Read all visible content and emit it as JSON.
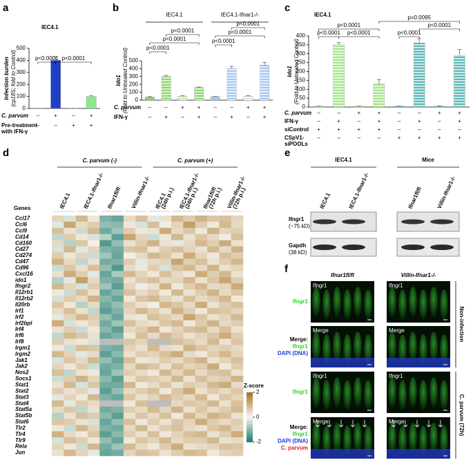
{
  "panel_labels": [
    "a",
    "b",
    "c",
    "d",
    "e",
    "f"
  ],
  "chart_data": [
    {
      "type": "bar",
      "title": "IEC4.1",
      "ylabel": [
        "Infection burden",
        "(cp18S; fold to Control)"
      ],
      "values": [
        1,
        400,
        1,
        100
      ],
      "errors": [
        0,
        30,
        0,
        8
      ],
      "colors": [
        "#1f3fc4",
        "#1f3fc4",
        "#8be88b",
        "#8be88b"
      ],
      "patterns": [
        "solid",
        "solid",
        "solid",
        "solid"
      ],
      "ylim": [
        0,
        500
      ],
      "yticks": [
        0,
        100,
        200,
        300,
        400,
        500
      ],
      "conditions": [
        {
          "label": [
            "C. parvum"
          ],
          "marks": [
            "–",
            "+",
            "–",
            "+"
          ]
        },
        {
          "label": [
            "Pre-treatment",
            "with IFN-γ"
          ],
          "marks": [
            "–",
            "–",
            "+",
            "+"
          ]
        }
      ],
      "annotations": [
        "p<0.0001",
        "p<0.0001"
      ]
    },
    {
      "type": "bar",
      "groups": [
        "IEC4.1",
        "IEC4.1-Ifnar1-/-"
      ],
      "ylabel": [
        "Ido1",
        "(Fold to Untreated Control)"
      ],
      "values": [
        40,
        300,
        50,
        160,
        45,
        400,
        50,
        445
      ],
      "errors": [
        5,
        15,
        6,
        8,
        5,
        30,
        8,
        35
      ],
      "colors": [
        "#8fd66f",
        "#8fd66f",
        "#c8e8b0",
        "#8fd66f",
        "#a7c8f0",
        "#a7c8f0",
        "#dde8f6",
        "#a7c8f0"
      ],
      "patterns": [
        "solid",
        "hatch",
        "hatch",
        "hatch",
        "solid",
        "hatch",
        "hatch",
        "hatch"
      ],
      "ylim": [
        0,
        500
      ],
      "yticks": [
        0,
        100,
        200,
        300,
        400,
        500
      ],
      "conditions": [
        {
          "label": [
            "C. parvum"
          ],
          "marks": [
            "–",
            "–",
            "+",
            "+",
            "–",
            "–",
            "+",
            "+"
          ]
        },
        {
          "label": [
            "IFN-γ"
          ],
          "marks": [
            "–",
            "+",
            "–",
            "+",
            "–",
            "+",
            "–",
            "+"
          ]
        }
      ],
      "annotations": [
        "p<0.0001",
        "p<0.0001",
        "p<0.0001",
        "p<0.0001",
        "p<0.0001",
        "p<0.0001"
      ]
    },
    {
      "type": "bar",
      "title": "IEC4.1",
      "ylabel": [
        "Ido1",
        "(Fold to Untreated Control)"
      ],
      "values": [
        5,
        350,
        5,
        130,
        5,
        360,
        5,
        290
      ],
      "errors": [
        1,
        12,
        1,
        25,
        1,
        25,
        2,
        35
      ],
      "colors": [
        "#a8e890",
        "#a8e890",
        "#a8e890",
        "#a8e890",
        "#5fb8b8",
        "#5fb8b8",
        "#5fb8b8",
        "#5fb8b8"
      ],
      "patterns": [
        "hatch",
        "hatch",
        "hatch",
        "hatch",
        "hatch",
        "hatch",
        "hatch",
        "hatch"
      ],
      "ylim": [
        0,
        400
      ],
      "yticks": [
        0,
        50,
        100,
        150,
        200,
        250,
        300,
        350,
        400
      ],
      "conditions": [
        {
          "label": [
            "C. parvum"
          ],
          "marks": [
            "–",
            "–",
            "+",
            "+",
            "–",
            "–",
            "+",
            "+"
          ]
        },
        {
          "label": [
            "IFN-γ"
          ],
          "marks": [
            "–",
            "+",
            "–",
            "+",
            "–",
            "+",
            "–",
            "+"
          ]
        },
        {
          "label": [
            "siControl"
          ],
          "marks": [
            "+",
            "+",
            "+",
            "+",
            "–",
            "–",
            "–",
            "–"
          ]
        },
        {
          "label": [
            "CSpV1-",
            "siPOOLs"
          ],
          "marks": [
            "–",
            "–",
            "–",
            "–",
            "+",
            "+",
            "+",
            "+"
          ]
        }
      ],
      "annotations": [
        "p=0.0095",
        "p<0.0001",
        "p<0.0001",
        "p<0.0001",
        "p<0.0001",
        "p<0.0001"
      ]
    },
    {
      "type": "heatmap",
      "group_titles": [
        "C. parvum (-)",
        "C. parvum (+)"
      ],
      "column_labels": [
        [
          "IEC4.1"
        ],
        [
          "IEC4.1-Ifnar1-/-"
        ],
        [
          "Ifnar1fl/fl"
        ],
        [
          "Villin-Ifnar1-/-"
        ],
        [
          "IEC4.1",
          "(24h p.i.)"
        ],
        [
          "IEC4.1-Ifnar1-/-",
          "(24h p.i.)"
        ],
        [
          "Ifnar1fl/fl",
          "(72h p.i.)"
        ],
        [
          "Villin-Ifnar1-/-",
          "(72h p.i.)"
        ]
      ],
      "ylabel": "Genes",
      "rows": [
        "Ccl17",
        "Ccl6",
        "Ccl9",
        "Cd14",
        "Cd160",
        "Cd27",
        "Cd274",
        "Cd47",
        "Cd96",
        "Cxcl16",
        "ido1",
        "Ifngr2",
        "Il12rb1",
        "Il12rb2",
        "Il20rb",
        "Irf1",
        "Irf2",
        "Irf2bpl",
        "Irf4",
        "Irf6",
        "Irf8",
        "Irgm1",
        "Irgm2",
        "Jak1",
        "Jak2",
        "Nos2",
        "Socs1",
        "Stat1",
        "Stat2",
        "Stat3",
        "Stat4",
        "Stat5a",
        "Stat5b",
        "Stat6",
        "Tlr2",
        "Tlr4",
        "Tlr9",
        "Rela",
        "Jun"
      ],
      "values": [
        [
          0.5,
          -0.3,
          0.9,
          0.2,
          -1.1,
          -1.3,
          0.4,
          0.8,
          -0.2,
          0.3,
          0.9,
          0.6,
          1.0,
          0.7,
          0.8,
          0.5
        ],
        [
          -0.2,
          1.2,
          0.4,
          0.6,
          -0.9,
          -1.0,
          0.2,
          -0.3,
          0.8,
          -0.1,
          0.5,
          1.3,
          0.6,
          0.2,
          0.9,
          0.4
        ],
        [
          0.8,
          0.3,
          -0.4,
          0.9,
          -1.2,
          -0.8,
          0.6,
          0.2,
          0.3,
          1.1,
          0.4,
          0.7,
          0.2,
          1.0,
          0.5,
          0.6
        ],
        [
          -0.5,
          0.6,
          0.2,
          -0.3,
          -0.6,
          -1.4,
          1.2,
          0.5,
          -0.4,
          0.2,
          0.9,
          0.3,
          0.7,
          0.4,
          0.1,
          0.8
        ],
        [
          0.4,
          -0.6,
          0.7,
          0.1,
          -1.5,
          -0.9,
          0.3,
          0.6,
          1.0,
          0.3,
          -0.2,
          0.4,
          0.9,
          0.6,
          1.1,
          0.3
        ],
        [
          -0.3,
          0.9,
          -0.2,
          0.5,
          -1.1,
          -1.2,
          0.7,
          0.8,
          0.2,
          0.6,
          0.8,
          0.5,
          0.3,
          0.9,
          0.4,
          1.0
        ],
        [
          0.6,
          0.2,
          0.5,
          -0.4,
          -0.8,
          -1.3,
          0.1,
          0.4,
          0.9,
          0.7,
          0.3,
          1.1,
          0.5,
          0.2,
          0.8,
          0.6
        ],
        [
          1.0,
          0.4,
          -0.5,
          0.3,
          -1.2,
          -1.1,
          0.6,
          -0.2,
          0.4,
          0.5,
          1.2,
          0.6,
          0.8,
          0.3,
          0.6,
          0.9
        ],
        [
          -0.4,
          0.7,
          0.3,
          0.8,
          -0.9,
          -1.5,
          0.4,
          0.2,
          0.6,
          -0.3,
          0.7,
          0.9,
          0.4,
          1.0,
          0.3,
          0.5
        ],
        [
          0.3,
          1.1,
          0.6,
          -0.2,
          -1.3,
          -0.7,
          0.9,
          0.5,
          0.2,
          0.8,
          0.4,
          0.2,
          1.1,
          0.6,
          0.9,
          0.3
        ],
        [
          -0.6,
          -0.2,
          1.3,
          0.4,
          -1.1,
          -1.2,
          0.3,
          0.6,
          0.8,
          0.4,
          0.5,
          0.9,
          0.3,
          0.7,
          1.2,
          0.6
        ],
        [
          0.9,
          0.5,
          -0.3,
          0.6,
          -0.8,
          -1.4,
          0.5,
          -0.1,
          0.3,
          1.0,
          0.2,
          0.6,
          0.9,
          0.4,
          0.5,
          1.1
        ],
        [
          0.2,
          -0.4,
          0.8,
          0.3,
          -1.3,
          -1.0,
          0.8,
          0.4,
          0.6,
          0.2,
          0.9,
          0.3,
          0.6,
          1.0,
          0.4,
          0.7
        ],
        [
          -0.3,
          0.6,
          0.4,
          1.0,
          -1.0,
          -1.3,
          0.2,
          0.7,
          0.9,
          0.5,
          0.3,
          0.8,
          0.4,
          0.6,
          0.9,
          0.2
        ],
        [
          0.7,
          0.2,
          -0.6,
          0.4,
          -1.2,
          -0.9,
          0.6,
          0.3,
          0.1,
          0.9,
          0.7,
          0.4,
          1.1,
          0.3,
          0.6,
          0.8
        ],
        [
          0.4,
          0.8,
          0.3,
          -0.5,
          -1.4,
          -1.1,
          0.5,
          0.9,
          0.6,
          0.3,
          1.0,
          0.6,
          0.2,
          0.8,
          0.7,
          0.5
        ],
        [
          -0.2,
          0.5,
          0.9,
          0.6,
          -0.9,
          -1.3,
          0.3,
          0.2,
          0.8,
          0.6,
          0.4,
          1.2,
          0.7,
          0.3,
          0.5,
          0.9
        ],
        [
          1.1,
          -0.3,
          0.2,
          0.5,
          -1.2,
          -0.8,
          0.8,
          0.4,
          0.3,
          0.7,
          0.9,
          0.2,
          0.6,
          1.0,
          0.4,
          0.6
        ],
        [
          0.3,
          0.6,
          -0.4,
          0.2,
          -1.0,
          -1.4,
          0.4,
          0.6,
          1.0,
          0.2,
          0.5,
          0.8,
          0.9,
          0.4,
          0.8,
          0.3
        ],
        [
          -0.5,
          0.9,
          0.7,
          0.3,
          -1.3,
          -1.1,
          0.2,
          0.8,
          0.4,
          0.9,
          0.6,
          0.3,
          0.5,
          0.7,
          1.1,
          0.6
        ],
        [
          0.6,
          0.3,
          0.2,
          -0.3,
          null,
          null,
          0.7,
          0.5,
          null,
          null,
          0.8,
          0.6,
          0.4,
          0.9,
          0.3,
          0.7
        ],
        [
          0.2,
          -0.4,
          0.8,
          0.7,
          -1.1,
          -1.2,
          0.5,
          0.3,
          0.9,
          0.4,
          0.3,
          1.0,
          0.7,
          0.5,
          0.6,
          0.4
        ],
        [
          0.9,
          0.5,
          -0.2,
          0.4,
          -1.4,
          -1.0,
          0.3,
          0.6,
          0.5,
          0.8,
          1.1,
          0.4,
          0.2,
          0.6,
          0.9,
          0.5
        ],
        [
          -0.3,
          0.7,
          0.4,
          0.9,
          -0.9,
          -1.3,
          0.8,
          0.2,
          0.3,
          0.6,
          0.4,
          0.7,
          1.0,
          0.3,
          0.5,
          0.8
        ],
        [
          0.5,
          0.2,
          0.6,
          -0.4,
          -1.2,
          -1.1,
          0.4,
          0.9,
          0.7,
          0.3,
          0.8,
          0.5,
          0.6,
          1.1,
          0.2,
          0.6
        ],
        [
          0.8,
          -0.5,
          0.3,
          0.2,
          -1.3,
          -0.8,
          0.6,
          0.4,
          0.2,
          0.9,
          0.5,
          0.9,
          0.4,
          0.7,
          0.8,
          0.3
        ],
        [
          -0.4,
          0.6,
          1.0,
          0.5,
          -1.0,
          -1.4,
          0.3,
          0.7,
          0.6,
          0.4,
          0.9,
          0.3,
          0.8,
          0.5,
          0.6,
          1.0
        ],
        [
          0.3,
          0.9,
          -0.3,
          0.7,
          -1.2,
          -1.2,
          0.9,
          0.2,
          0.4,
          0.7,
          0.3,
          0.6,
          0.5,
          0.9,
          1.1,
          0.4
        ],
        [
          0.6,
          0.3,
          0.5,
          -0.2,
          -1.4,
          -0.9,
          0.4,
          0.6,
          0.8,
          0.2,
          0.7,
          1.1,
          0.3,
          0.6,
          0.4,
          0.7
        ],
        [
          -0.2,
          0.5,
          0.2,
          0.9,
          -1.1,
          -1.3,
          0.7,
          0.3,
          0.5,
          0.9,
          0.6,
          0.4,
          0.9,
          0.2,
          0.7,
          0.5
        ],
        [
          0.9,
          -0.2,
          0.6,
          0.4,
          null,
          null,
          0.2,
          0.8,
          null,
          null,
          0.4,
          0.7,
          0.6,
          0.9,
          0.3,
          0.8
        ],
        [
          0.4,
          0.7,
          -0.5,
          0.3,
          -1.2,
          -1.1,
          0.6,
          0.4,
          0.9,
          0.5,
          1.0,
          0.3,
          0.7,
          0.4,
          0.6,
          0.9
        ],
        [
          -0.6,
          0.3,
          0.8,
          0.6,
          -1.0,
          -1.4,
          0.3,
          0.7,
          0.4,
          0.8,
          0.2,
          0.9,
          0.5,
          1.0,
          0.8,
          0.3
        ],
        [
          0.7,
          0.6,
          0.3,
          -0.3,
          -1.3,
          -0.9,
          0.8,
          0.2,
          0.6,
          0.3,
          0.7,
          0.5,
          1.1,
          0.6,
          0.4,
          0.6
        ],
        [
          0.2,
          -0.4,
          0.9,
          0.5,
          -1.1,
          -1.2,
          0.4,
          0.9,
          0.3,
          0.6,
          0.8,
          0.4,
          0.3,
          0.7,
          0.9,
          0.5
        ],
        [
          1.0,
          0.4,
          0.2,
          0.7,
          -1.4,
          -1.0,
          0.6,
          0.3,
          0.8,
          0.2,
          0.5,
          0.8,
          0.9,
          0.3,
          0.6,
          1.1
        ],
        [
          -0.3,
          0.8,
          0.6,
          0.2,
          -0.9,
          -1.3,
          0.2,
          0.7,
          0.5,
          0.9,
          0.4,
          0.6,
          0.6,
          0.9,
          0.3,
          0.4
        ],
        [
          0.5,
          0.2,
          -0.4,
          0.9,
          -1.2,
          -0.8,
          0.9,
          0.4,
          0.2,
          0.6,
          1.1,
          0.3,
          0.4,
          0.5,
          0.8,
          0.7
        ],
        [
          0.3,
          0.9,
          0.5,
          -0.2,
          -1.3,
          -1.2,
          0.5,
          0.8,
          0.7,
          0.3,
          0.6,
          0.9,
          0.8,
          0.2,
          0.5,
          0.6
        ]
      ],
      "zlim": [
        -2,
        2
      ],
      "zticks": [
        2,
        0,
        -2
      ],
      "colorbar_title": "Z-score",
      "colorscale": [
        "#1b7a6c",
        "#f7f5ee",
        "#a8701e"
      ],
      "missing_color": "#bdbdbd"
    }
  ],
  "blot": {
    "groups": [
      "IEC4.1",
      "Mice"
    ],
    "lanes": [
      "IEC4.1",
      "IEC4.1-Ifnar1-/-",
      "Ifnar1fl/fl",
      "Villin-Ifnar1-/-"
    ],
    "bands": [
      [
        "Ifngr1",
        "(~75 kD)"
      ],
      [
        "Gapdh",
        "(38 kD)"
      ]
    ]
  },
  "microscopy": {
    "columns": [
      "Ifnar1fl/fl",
      "Villin-Ifnar1-/-"
    ],
    "conditions": [
      "Non-infection",
      "C. parvum (72h)"
    ],
    "rows": [
      {
        "inset": "Ifngr1",
        "legend": [
          "Ifngr1"
        ]
      },
      {
        "inset": "Merge",
        "legend": [
          "Merge:",
          "Ifngr1",
          "DAPI (DNA)"
        ]
      },
      {
        "inset": "Ifngr1",
        "legend": [
          "Ifngr1"
        ]
      },
      {
        "inset": "Merge",
        "legend": [
          "Merge:",
          "Ifngr1",
          "DAPI (DNA)",
          "C. parvum"
        ]
      }
    ]
  }
}
